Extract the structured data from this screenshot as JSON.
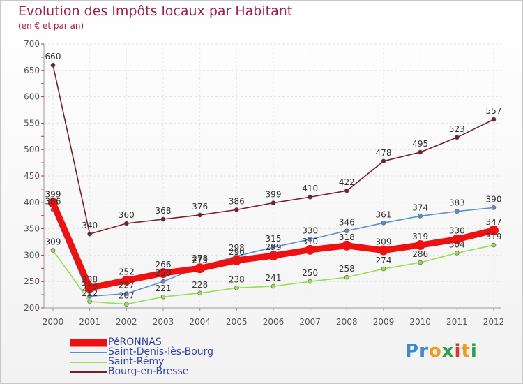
{
  "header": {
    "title": "Evolution des Impôts locaux par Habitant",
    "subtitle": "(en € et par an)"
  },
  "logo": {
    "text": "Proxiti",
    "letters": [
      "P",
      "r",
      "o",
      "x",
      "i",
      "t",
      "i"
    ],
    "colors": [
      "#3a8ad6",
      "#3a8ad6",
      "#f29a1e",
      "#2ba24a",
      "#e0322b",
      "#f29a1e",
      "#2ba24a"
    ]
  },
  "chart_data": {
    "type": "line",
    "title": "Evolution des Impôts locaux par Habitant",
    "subtitle": "(en € et par an)",
    "xlabel": "",
    "ylabel": "",
    "x": [
      "2000",
      "2001",
      "2002",
      "2003",
      "2004",
      "2005",
      "2006",
      "2007",
      "2008",
      "2009",
      "2010",
      "2011",
      "2012"
    ],
    "ylim": [
      200,
      700
    ],
    "yticks": [
      200,
      250,
      300,
      350,
      400,
      450,
      500,
      550,
      600,
      650,
      700
    ],
    "grid": true,
    "legend": "bottom-left",
    "series": [
      {
        "name": "Bourg-en-Bresse",
        "color": "#7a1e2e",
        "values": [
          660,
          340,
          360,
          368,
          376,
          386,
          399,
          410,
          422,
          478,
          495,
          523,
          557
        ],
        "labels": [
          "660",
          "340",
          "360",
          "368",
          "376",
          "386",
          "399",
          "410",
          "422",
          "478",
          "495",
          "523",
          "557"
        ]
      },
      {
        "name": "Saint-Denis-lès-Bourg",
        "color": "#5b8fd1",
        "values": [
          386,
          222,
          227,
          250,
          278,
          298,
          315,
          330,
          346,
          361,
          374,
          383,
          390
        ],
        "labels": [
          "386",
          "222",
          "227",
          "250",
          "278",
          "298",
          "315",
          "330",
          "346",
          "361",
          "374",
          "383",
          "390"
        ]
      },
      {
        "name": "Saint-Rémy",
        "color": "#99dd55",
        "values": [
          309,
          212,
          207,
          221,
          228,
          238,
          241,
          250,
          258,
          274,
          286,
          304,
          319
        ],
        "labels": [
          "309",
          "212",
          "207",
          "221",
          "228",
          "238",
          "241",
          "250",
          "258",
          "274",
          "286",
          "304",
          "319"
        ]
      },
      {
        "name": "PéRONNAS",
        "color": "#ee1111",
        "values": [
          399,
          238,
          252,
          266,
          275,
          290,
          299,
          310,
          318,
          309,
          319,
          330,
          347
        ],
        "labels": [
          "399",
          "238",
          "252",
          "266",
          "275",
          "290",
          "299",
          "310",
          "318",
          "309",
          "319",
          "330",
          "347"
        ]
      }
    ],
    "legend_entries": [
      "PéRONNAS",
      "Saint-Denis-lès-Bourg",
      "Saint-Rémy",
      "Bourg-en-Bresse"
    ]
  }
}
